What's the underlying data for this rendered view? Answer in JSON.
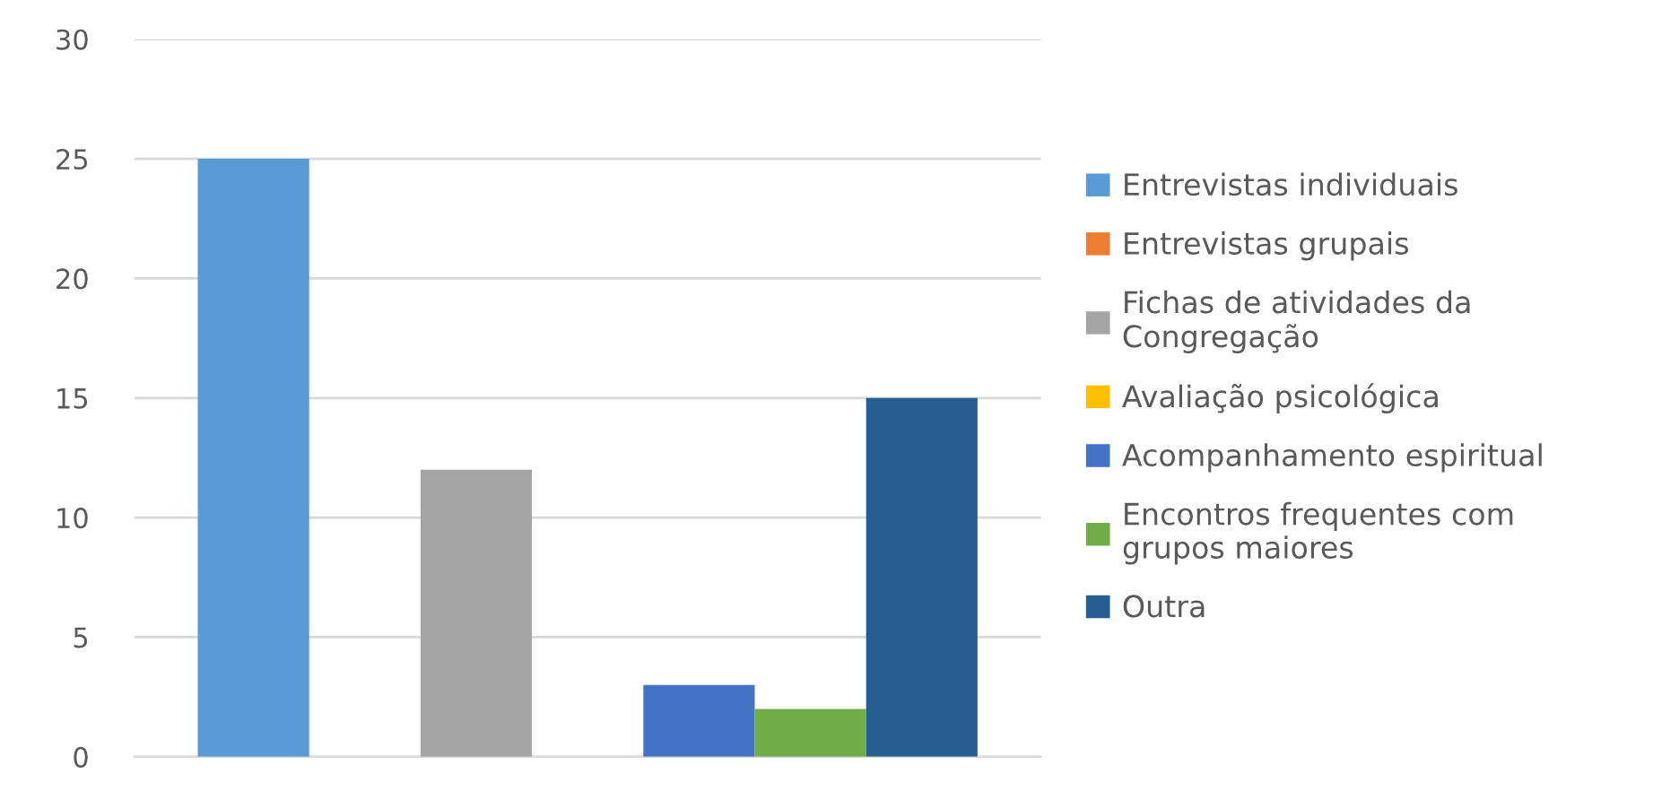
{
  "chart_data": {
    "type": "bar",
    "categories": [
      null
    ],
    "series": [
      {
        "name": "Entrevistas individuais",
        "color": "#5b9bd5",
        "values": [
          25
        ]
      },
      {
        "name": "Entrevistas grupais",
        "color": "#ed7d31",
        "values": [
          0
        ]
      },
      {
        "name": "Fichas de atividades da\nCongregação",
        "color": "#a5a5a5",
        "values": [
          12
        ]
      },
      {
        "name": "Avaliação psicológica",
        "color": "#ffc000",
        "values": [
          0
        ]
      },
      {
        "name": "Acompanhamento espiritual",
        "color": "#4472c4",
        "values": [
          3
        ]
      },
      {
        "name": "Encontros frequentes com\ngrupos maiores",
        "color": "#70ad47",
        "values": [
          2
        ]
      },
      {
        "name": "Outra",
        "color": "#255e91",
        "values": [
          15
        ]
      }
    ],
    "ylim": [
      0,
      30
    ],
    "yticks": [
      0,
      5,
      10,
      15,
      20,
      25,
      30
    ],
    "grid": "y",
    "legend": "right"
  }
}
